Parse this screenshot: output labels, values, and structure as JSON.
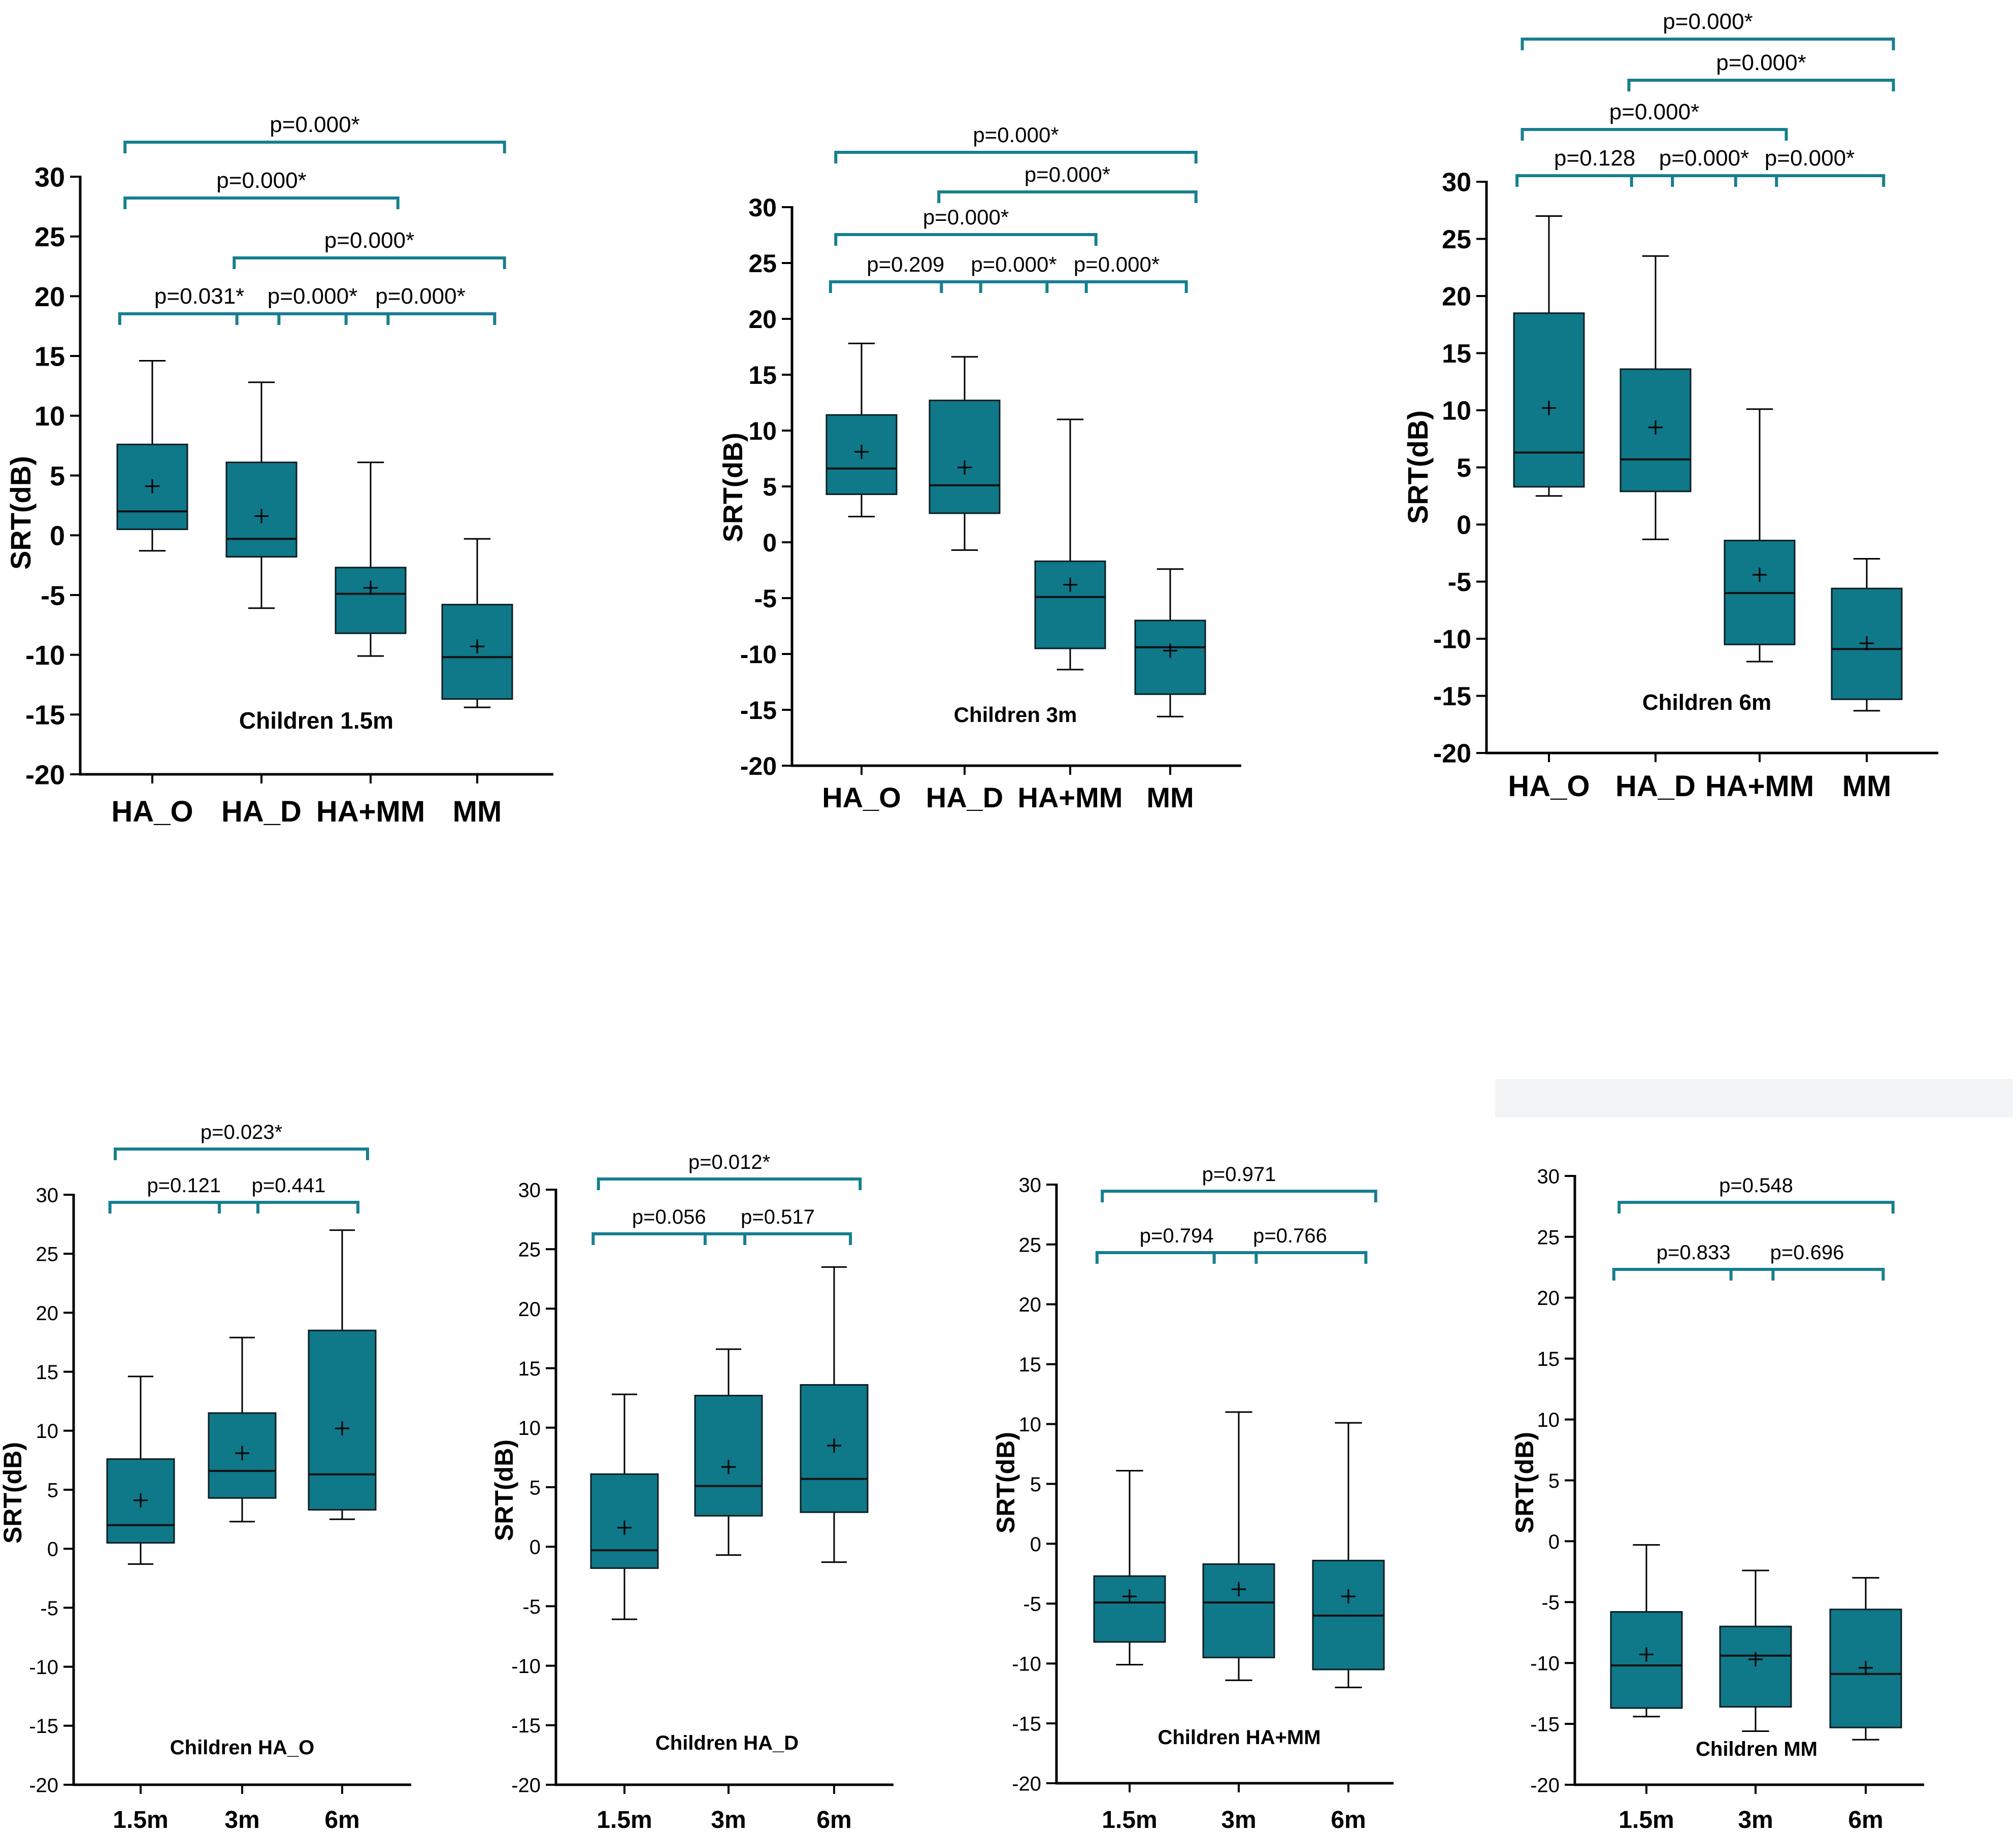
{
  "colors": {
    "box_fill": "#0f7889",
    "bracket": "#167f8f",
    "axis": "#000000",
    "median": "#111111"
  },
  "ylabel": "SRT(dB)",
  "chart_data": [
    {
      "type": "boxplot",
      "title": "Children 1.5m",
      "ylabel": "SRT(dB)",
      "ylim": [
        -20,
        30
      ],
      "yticks": [
        "30",
        "25",
        "20",
        "15",
        "10",
        "5",
        "0",
        "-5",
        "-10",
        "-15",
        "-20"
      ],
      "categories": [
        "HA_O",
        "HA_D",
        "HA+MM",
        "MM"
      ],
      "boxes": [
        {
          "min": -1.3,
          "q1": 0.5,
          "median": 2.0,
          "q3": 7.6,
          "max": 14.6,
          "mean": 4.1
        },
        {
          "min": -6.1,
          "q1": -1.8,
          "median": -0.3,
          "q3": 6.1,
          "max": 12.8,
          "mean": 1.6
        },
        {
          "min": -10.1,
          "q1": -8.2,
          "median": -4.9,
          "q3": -2.7,
          "max": 6.1,
          "mean": -4.4
        },
        {
          "min": -14.4,
          "q1": -13.7,
          "median": -10.2,
          "q3": -5.8,
          "max": -0.3,
          "mean": -9.3
        }
      ],
      "comparisons": [
        {
          "label": "p=0.000*",
          "from": 0,
          "to": 3,
          "level": 5
        },
        {
          "label": "p=0.000*",
          "from": 0,
          "to": 2,
          "level": 4
        },
        {
          "label": "p=0.000*",
          "from": 1,
          "to": 3,
          "level": 3
        },
        {
          "label": "p=0.031*",
          "from": 0,
          "to": 1,
          "level": 1
        },
        {
          "label": "p=0.000*",
          "from": 1,
          "to": 2,
          "level": 1
        },
        {
          "label": "p=0.000*",
          "from": 2,
          "to": 3,
          "level": 1
        }
      ]
    },
    {
      "type": "boxplot",
      "title": "Children 3m",
      "ylabel": "SRT(dB)",
      "ylim": [
        -20,
        30
      ],
      "yticks": [
        "30",
        "25",
        "20",
        "15",
        "10",
        "5",
        "0",
        "-5",
        "-10",
        "-15",
        "-20"
      ],
      "categories": [
        "HA_O",
        "HA_D",
        "HA+MM",
        "MM"
      ],
      "boxes": [
        {
          "min": 2.3,
          "q1": 4.3,
          "median": 6.6,
          "q3": 11.4,
          "max": 17.8,
          "mean": 8.1
        },
        {
          "min": -0.7,
          "q1": 2.6,
          "median": 5.1,
          "q3": 12.7,
          "max": 16.6,
          "mean": 6.7
        },
        {
          "min": -11.4,
          "q1": -9.5,
          "median": -4.9,
          "q3": -1.7,
          "max": 11.0,
          "mean": -3.8
        },
        {
          "min": -15.6,
          "q1": -13.6,
          "median": -9.4,
          "q3": -7.0,
          "max": -2.4,
          "mean": -9.7
        }
      ],
      "comparisons": [
        {
          "label": "p=0.000*",
          "from": 0,
          "to": 3,
          "level": 5
        },
        {
          "label": "p=0.000*",
          "from": 1,
          "to": 3,
          "level": 4
        },
        {
          "label": "p=0.000*",
          "from": 0,
          "to": 2,
          "level": 3
        },
        {
          "label": "p=0.209",
          "from": 0,
          "to": 1,
          "level": 1
        },
        {
          "label": "p=0.000*",
          "from": 1,
          "to": 2,
          "level": 1
        },
        {
          "label": "p=0.000*",
          "from": 2,
          "to": 3,
          "level": 1
        }
      ]
    },
    {
      "type": "boxplot",
      "title": "Children 6m",
      "ylabel": "SRT(dB)",
      "ylim": [
        -20,
        30
      ],
      "yticks": [
        "30",
        "25",
        "20",
        "15",
        "10",
        "5",
        "0",
        "-5",
        "-10",
        "-15",
        "-20"
      ],
      "categories": [
        "HA_O",
        "HA_D",
        "HA+MM",
        "MM"
      ],
      "boxes": [
        {
          "min": 2.5,
          "q1": 3.3,
          "median": 6.3,
          "q3": 18.5,
          "max": 27.0,
          "mean": 10.2
        },
        {
          "min": -1.3,
          "q1": 2.9,
          "median": 5.7,
          "q3": 13.6,
          "max": 23.5,
          "mean": 8.5
        },
        {
          "min": -12.0,
          "q1": -10.5,
          "median": -6.0,
          "q3": -1.4,
          "max": 10.1,
          "mean": -4.4
        },
        {
          "min": -16.3,
          "q1": -15.3,
          "median": -10.9,
          "q3": -5.6,
          "max": -3.0,
          "mean": -10.4
        }
      ],
      "comparisons": [
        {
          "label": "p=0.000*",
          "from": 0,
          "to": 3,
          "level": 5
        },
        {
          "label": "p=0.000*",
          "from": 1,
          "to": 3,
          "level": 4
        },
        {
          "label": "p=0.000*",
          "from": 0,
          "to": 2,
          "level": 3
        },
        {
          "label": "p=0.128",
          "from": 0,
          "to": 1,
          "level": 1
        },
        {
          "label": "p=0.000*",
          "from": 1,
          "to": 2,
          "level": 1
        },
        {
          "label": "p=0.000*",
          "from": 2,
          "to": 3,
          "level": 1
        }
      ]
    },
    {
      "type": "boxplot",
      "title": "Children HA_O",
      "ylabel": "SRT(dB)",
      "ylim": [
        -20,
        30
      ],
      "yticks": [
        "30",
        "25",
        "20",
        "15",
        "10",
        "5",
        "0",
        "-5",
        "-10",
        "-15",
        "-20"
      ],
      "categories": [
        "1.5m",
        "3m",
        "6m"
      ],
      "boxes": [
        {
          "min": -1.3,
          "q1": 0.5,
          "median": 2.0,
          "q3": 7.6,
          "max": 14.6,
          "mean": 4.1
        },
        {
          "min": 2.3,
          "q1": 4.3,
          "median": 6.6,
          "q3": 11.5,
          "max": 17.9,
          "mean": 8.1
        },
        {
          "min": 2.5,
          "q1": 3.3,
          "median": 6.3,
          "q3": 18.5,
          "max": 27.0,
          "mean": 10.2
        }
      ],
      "comparisons": [
        {
          "label": "p=0.023*",
          "from": 0,
          "to": 2,
          "level": 3
        },
        {
          "label": "p=0.121",
          "from": 0,
          "to": 1,
          "level": 1
        },
        {
          "label": "p=0.441",
          "from": 1,
          "to": 2,
          "level": 1
        }
      ]
    },
    {
      "type": "boxplot",
      "title": "Children HA_D",
      "ylabel": "SRT(dB)",
      "ylim": [
        -20,
        30
      ],
      "yticks": [
        "30",
        "25",
        "20",
        "15",
        "10",
        "5",
        "0",
        "-5",
        "-10",
        "-15",
        "-20"
      ],
      "categories": [
        "1.5m",
        "3m",
        "6m"
      ],
      "boxes": [
        {
          "min": -6.1,
          "q1": -1.8,
          "median": -0.3,
          "q3": 6.1,
          "max": 12.8,
          "mean": 1.6
        },
        {
          "min": -0.7,
          "q1": 2.6,
          "median": 5.1,
          "q3": 12.7,
          "max": 16.6,
          "mean": 6.7
        },
        {
          "min": -1.3,
          "q1": 2.9,
          "median": 5.7,
          "q3": 13.6,
          "max": 23.5,
          "mean": 8.5
        }
      ],
      "comparisons": [
        {
          "label": "p=0.012*",
          "from": 0,
          "to": 2,
          "level": 3
        },
        {
          "label": "p=0.056",
          "from": 0,
          "to": 1,
          "level": 1
        },
        {
          "label": "p=0.517",
          "from": 1,
          "to": 2,
          "level": 1
        }
      ]
    },
    {
      "type": "boxplot",
      "title": "Children HA+MM",
      "ylabel": "SRT(dB)",
      "ylim": [
        -20,
        30
      ],
      "yticks": [
        "30",
        "25",
        "20",
        "15",
        "10",
        "5",
        "0",
        "-5",
        "-10",
        "-15",
        "-20"
      ],
      "categories": [
        "1.5m",
        "3m",
        "6m"
      ],
      "boxes": [
        {
          "min": -10.1,
          "q1": -8.2,
          "median": -4.9,
          "q3": -2.7,
          "max": 6.1,
          "mean": -4.4
        },
        {
          "min": -11.4,
          "q1": -9.5,
          "median": -4.9,
          "q3": -1.7,
          "max": 11.0,
          "mean": -3.8
        },
        {
          "min": -12.0,
          "q1": -10.5,
          "median": -6.0,
          "q3": -1.4,
          "max": 10.1,
          "mean": -4.4
        }
      ],
      "comparisons": [
        {
          "label": "p=0.971",
          "from": 0,
          "to": 2,
          "level": 3
        },
        {
          "label": "p=0.794",
          "from": 0,
          "to": 1,
          "level": 1
        },
        {
          "label": "p=0.766",
          "from": 1,
          "to": 2,
          "level": 1
        }
      ]
    },
    {
      "type": "boxplot",
      "title": "Children MM",
      "ylabel": "SRT(dB)",
      "ylim": [
        -20,
        30
      ],
      "yticks": [
        "30",
        "25",
        "20",
        "15",
        "10",
        "5",
        "0",
        "-5",
        "-10",
        "-15",
        "-20"
      ],
      "categories": [
        "1.5m",
        "3m",
        "6m"
      ],
      "boxes": [
        {
          "min": -14.4,
          "q1": -13.7,
          "median": -10.2,
          "q3": -5.8,
          "max": -0.3,
          "mean": -9.3
        },
        {
          "min": -15.6,
          "q1": -13.6,
          "median": -9.4,
          "q3": -7.0,
          "max": -2.4,
          "mean": -9.7
        },
        {
          "min": -16.3,
          "q1": -15.3,
          "median": -10.9,
          "q3": -5.6,
          "max": -3.0,
          "mean": -10.4
        }
      ],
      "comparisons": [
        {
          "label": "p=0.548",
          "from": 0,
          "to": 2,
          "level": 3
        },
        {
          "label": "p=0.833",
          "from": 0,
          "to": 1,
          "level": 1
        },
        {
          "label": "p=0.696",
          "from": 1,
          "to": 2,
          "level": 1
        }
      ]
    }
  ]
}
